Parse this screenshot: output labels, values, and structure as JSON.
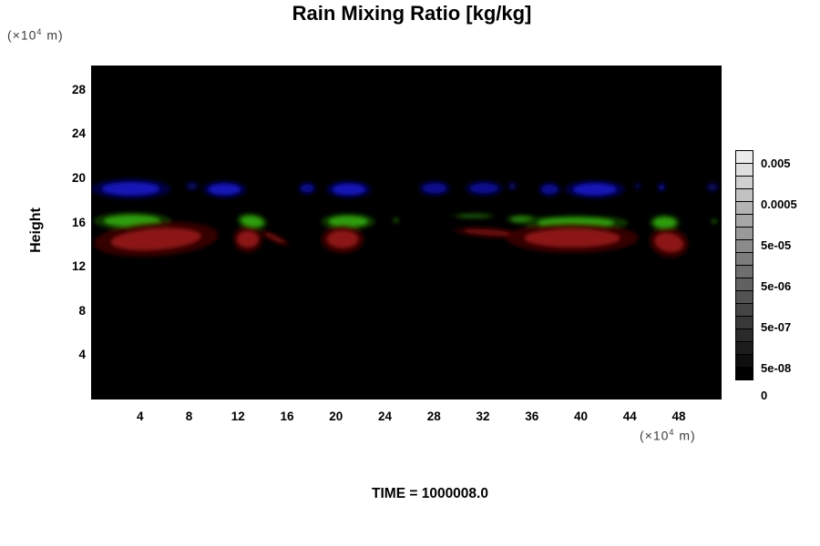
{
  "title": "Rain Mixing Ratio [kg/kg]",
  "y_axis_label": "Height",
  "axis_unit": {
    "prefix": "(×10",
    "sup": "4",
    "suffix": " m)"
  },
  "footer": {
    "time_label": "TIME = 1000008.0"
  },
  "chart_data": {
    "type": "heatmap",
    "title": "Rain Mixing Ratio [kg/kg]",
    "xlabel": "(×10^4 m)",
    "ylabel": "Height (×10^4 m)",
    "time_annotation": "TIME = 1000008.0",
    "xlim": [
      0,
      51.5
    ],
    "ylim": [
      0,
      30.2
    ],
    "x_ticks": [
      4,
      8,
      12,
      16,
      20,
      24,
      28,
      32,
      36,
      40,
      44,
      48
    ],
    "y_ticks": [
      4,
      8,
      12,
      16,
      20,
      24,
      28
    ],
    "grid": false,
    "background": "#000000",
    "colorbar": {
      "position": "right",
      "n_boxes": 18,
      "top_gray": 236,
      "bottom_gray": 0,
      "labels": [
        {
          "text": "0.005",
          "at": 1
        },
        {
          "text": "0.0005",
          "at": 4
        },
        {
          "text": "5e-05",
          "at": 7
        },
        {
          "text": "5e-06",
          "at": 10
        },
        {
          "text": "5e-07",
          "at": 13
        },
        {
          "text": "5e-08",
          "at": 16
        },
        {
          "text": "0",
          "at": 18
        }
      ]
    },
    "palette": {
      "blue": {
        "core": "#1212b8",
        "edge": "#00004a"
      },
      "green": {
        "core": "#2f9e10",
        "edge": "#123c00"
      },
      "red": {
        "core": "#8c1212",
        "edge": "#3c0303"
      }
    },
    "opacity": {
      "bright": 1,
      "medium": 0.7,
      "faint": 0.42
    },
    "regions": [
      {
        "band": "blue",
        "x": [
          0.0,
          6.5
        ],
        "cy": 19.05,
        "ry": 0.95,
        "intensity": "bright"
      },
      {
        "band": "blue",
        "x": [
          7.7,
          8.8
        ],
        "cy": 19.3,
        "ry": 0.5,
        "intensity": "faint"
      },
      {
        "band": "blue",
        "x": [
          9.1,
          12.7
        ],
        "cy": 19.0,
        "ry": 0.8,
        "intensity": "bright"
      },
      {
        "band": "blue",
        "x": [
          16.9,
          18.4
        ],
        "cy": 19.1,
        "ry": 0.6,
        "intensity": "medium"
      },
      {
        "band": "blue",
        "x": [
          19.2,
          22.9
        ],
        "cy": 19.0,
        "ry": 0.8,
        "intensity": "bright"
      },
      {
        "band": "blue",
        "x": [
          26.7,
          29.4
        ],
        "cy": 19.1,
        "ry": 0.75,
        "intensity": "medium"
      },
      {
        "band": "blue",
        "x": [
          30.5,
          33.7
        ],
        "cy": 19.1,
        "ry": 0.75,
        "intensity": "medium"
      },
      {
        "band": "blue",
        "x": [
          34.0,
          34.8
        ],
        "cy": 19.3,
        "ry": 0.45,
        "intensity": "faint"
      },
      {
        "band": "blue",
        "x": [
          36.5,
          38.4
        ],
        "cy": 19.0,
        "ry": 0.7,
        "intensity": "medium"
      },
      {
        "band": "blue",
        "x": [
          38.7,
          43.6
        ],
        "cy": 19.0,
        "ry": 0.85,
        "intensity": "bright"
      },
      {
        "band": "blue",
        "x": [
          44.4,
          44.9
        ],
        "cy": 19.3,
        "ry": 0.4,
        "intensity": "faint"
      },
      {
        "band": "blue",
        "x": [
          46.3,
          46.9
        ],
        "cy": 19.2,
        "ry": 0.45,
        "intensity": "medium"
      },
      {
        "band": "blue",
        "x": [
          50.2,
          51.3
        ],
        "cy": 19.2,
        "ry": 0.5,
        "intensity": "faint"
      },
      {
        "band": "green",
        "x": [
          0.2,
          6.5
        ],
        "cy": 16.15,
        "ry": 0.8,
        "intensity": "bright"
      },
      {
        "band": "green",
        "x": [
          11.9,
          14.4
        ],
        "cy": 16.1,
        "ry": 0.75,
        "tilt": 8,
        "intensity": "bright"
      },
      {
        "band": "green",
        "x": [
          18.8,
          23.2
        ],
        "cy": 16.1,
        "ry": 0.75,
        "intensity": "bright"
      },
      {
        "band": "green",
        "x": [
          24.6,
          25.2
        ],
        "cy": 16.2,
        "ry": 0.3,
        "intensity": "faint"
      },
      {
        "band": "green",
        "x": [
          29.4,
          33.1
        ],
        "cy": 16.6,
        "ry": 0.3,
        "intensity": "faint"
      },
      {
        "band": "green",
        "x": [
          33.9,
          36.5
        ],
        "cy": 16.3,
        "ry": 0.45,
        "intensity": "medium"
      },
      {
        "band": "green",
        "x": [
          35.3,
          43.9
        ],
        "cy": 16.0,
        "ry": 0.7,
        "intensity": "bright"
      },
      {
        "band": "green",
        "x": [
          45.6,
          48.1
        ],
        "cy": 16.0,
        "ry": 0.75,
        "intensity": "bright"
      },
      {
        "band": "green",
        "x": [
          50.6,
          51.2
        ],
        "cy": 16.1,
        "ry": 0.3,
        "intensity": "faint"
      },
      {
        "band": "red",
        "x": [
          0.2,
          10.4
        ],
        "cy": 14.5,
        "ry": 1.55,
        "tilt": -4,
        "intensity": "bright"
      },
      {
        "band": "red",
        "x": [
          11.6,
          14.0
        ],
        "cy": 14.5,
        "ry": 1.2,
        "intensity": "bright"
      },
      {
        "band": "red",
        "x": [
          13.7,
          16.3
        ],
        "cy": 14.6,
        "ry": 0.35,
        "tilt": 25,
        "intensity": "medium"
      },
      {
        "band": "red",
        "x": [
          18.8,
          22.3
        ],
        "cy": 14.5,
        "ry": 1.3,
        "intensity": "bright"
      },
      {
        "band": "red",
        "x": [
          29.6,
          35.4
        ],
        "cy": 15.1,
        "ry": 0.45,
        "tilt": 4,
        "intensity": "medium"
      },
      {
        "band": "red",
        "x": [
          33.9,
          44.7
        ],
        "cy": 14.6,
        "ry": 1.35,
        "intensity": "bright"
      },
      {
        "band": "red",
        "x": [
          45.6,
          48.8
        ],
        "cy": 14.2,
        "ry": 1.35,
        "tilt": 12,
        "intensity": "bright"
      }
    ]
  }
}
